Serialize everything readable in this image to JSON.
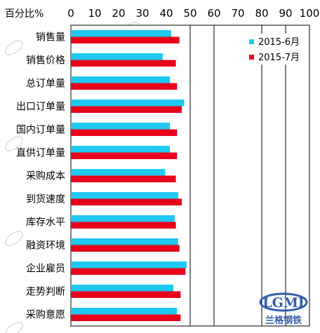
{
  "chart_data": {
    "type": "bar",
    "orientation": "horizontal",
    "xunit_label": "百分比%",
    "xlim": [
      0,
      100
    ],
    "xticks": [
      0,
      10,
      20,
      30,
      40,
      50,
      60,
      70,
      80,
      90,
      100
    ],
    "categories": [
      "销售量",
      "销售价格",
      "总订单量",
      "出口订单量",
      "国内订单量",
      "直供订单量",
      "采购成本",
      "到货速度",
      "库存水平",
      "融资环境",
      "企业雇员",
      "走势判断",
      "采购意愿"
    ],
    "series": [
      {
        "name": "2015-6月",
        "color": "#1EC8F0",
        "values": [
          42.0,
          38.5,
          41.5,
          47.5,
          41.5,
          41.5,
          39.5,
          45.0,
          43.5,
          45.0,
          48.5,
          43.0,
          44.5
        ]
      },
      {
        "name": "2015-7月",
        "color": "#E8001C",
        "values": [
          45.5,
          44.0,
          44.5,
          46.5,
          44.5,
          44.5,
          44.0,
          46.5,
          44.0,
          45.5,
          48.0,
          46.0,
          46.0
        ]
      }
    ],
    "grid": {
      "vertical_at": [
        50,
        60,
        80,
        90
      ]
    },
    "legend_position": "top-right"
  },
  "watermark": {
    "logo_text": "LGMI",
    "brand_text": "兰格钢铁"
  }
}
